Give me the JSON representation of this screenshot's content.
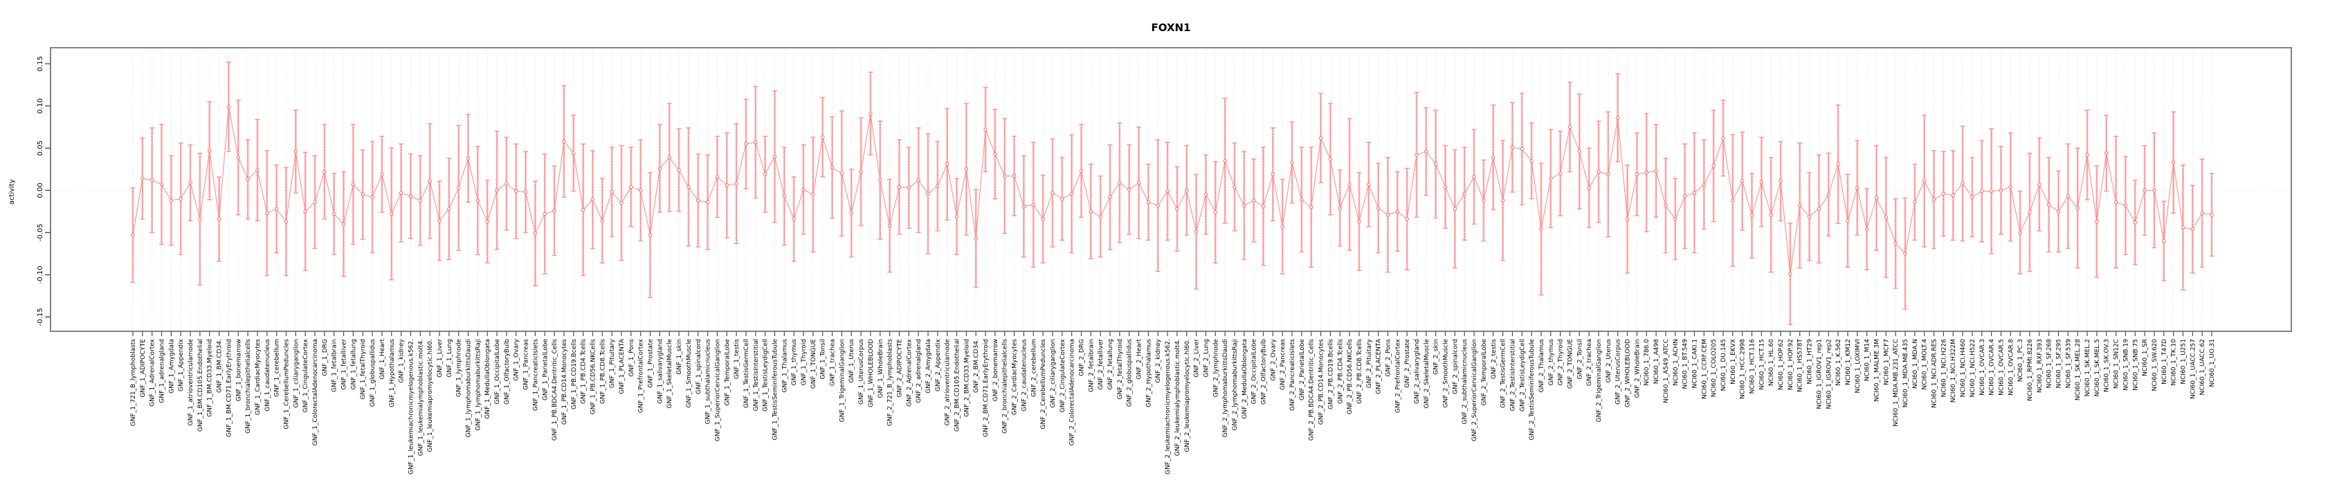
{
  "chart_data": {
    "type": "line",
    "subtype": "point-with-error-bars",
    "title": "FOXN1",
    "ylabel": "activity",
    "xlabel": "",
    "grid": "vertical-dotted-per-category, dotted-zero-line",
    "legend_position": "none",
    "ylim": [
      -0.167,
      0.169
    ],
    "ytick_values": [
      0.15,
      0.1,
      0.05,
      0,
      -0.05,
      -0.1,
      -0.15
    ],
    "ytick_labels": [
      "0.15",
      "0.10",
      "0.05",
      "0.00",
      "-0.05",
      "-0.10",
      "-0.15"
    ],
    "colors": {
      "point": "#ff6e6e",
      "line": "#ff8585",
      "bar_light": "#ffb3b3",
      "bar_dash": "#ff7070",
      "cap": "#ff9a9a",
      "grid": "#dcdcdc",
      "zero_line": "#e2e2e2",
      "box": "#828282",
      "tick": "#4d4d4d",
      "text": "#000000"
    },
    "category_groups": {
      "series_prefixes": [
        "GNF_1_",
        "GNF_2_"
      ],
      "gnf_tissues": [
        "721_B_lymphoblasts",
        "ADIPOCYTE",
        "AdrenalCortex",
        "adrenalgland",
        "Amygdala",
        "Appendix",
        "atrioventricularnode",
        "BM.CD105.Endothelial",
        "BM.CD33.Myeloid",
        "BM.CD34.",
        "BM.CD71.EarlyErythroid",
        "bonemarrow",
        "bronchialepithelialcells",
        "CardiacMyocytes",
        "caudatenucleus",
        "cerebellum",
        "CerebellumPeduncles",
        "ciliaryganglion",
        "CingulateCortex",
        "ColorectalAdenocarcinoma",
        "DRG",
        "fetalbrain",
        "fetalliver",
        "fetallung",
        "fetalThyroid",
        "globuspallidus",
        "Heart",
        "Hypothalamus",
        "kidney",
        "leukemiachronicmyelogenous.k562.",
        "leukemialymphoblastic.molt4.",
        "leukemiapromyelocytic.hl60.",
        "Liver",
        "Lung",
        "lymphnode",
        "lymphomaburkittsDaudi",
        "lymphomaburkittsRaji",
        "MedullaOblongata",
        "OccipitalLobe",
        "OlfactoryBulb",
        "Ovary",
        "Pancreas",
        "PancreaticIslets",
        "ParietalLobe",
        "PB.BDCA4.Dentritic_Cells",
        "PB.CD14.Monocytes",
        "PB.CD19.Bcells",
        "PB.CD4.Tcells",
        "PB.CD56.NKCells",
        "PB.CD8.Tcells",
        "Pituitary",
        "PLACENTA",
        "Pons",
        "PrefrontalCortex",
        "Prostate",
        "salivarygland",
        "SkeletalMuscle",
        "skin",
        "SmoothMuscle",
        "spinalcord",
        "subthalamicnucleus",
        "SuperiorCervicalGanglion",
        "TemporalLobe",
        "testis",
        "TestisGermCell",
        "TestisInterstitial",
        "TestisLeydigCell",
        "TestisSeminiferousTubule",
        "Thalamus",
        "thymus",
        "Thyroid",
        "TONGUE",
        "Tonsil",
        "trachea",
        "TrigeminalGanglion",
        "Uterus",
        "UterusCorpus",
        "WHOLEBLOOD",
        "WholeBrain"
      ],
      "nci60_prefix": "NCI60_1_",
      "nci60_lines": [
        "786.0",
        "A498",
        "A549_ATCC",
        "ACHN",
        "BT.549",
        "CAKI.1",
        "CCRF.CEM",
        "COLO205",
        "DU.145",
        "EKVX",
        "HCC.2998",
        "HCT.116",
        "HCT.15",
        "HL.60",
        "HOP.62",
        "HOP.92",
        "HS578T",
        "HT29",
        "IGROV1_rep1",
        "IGROV1_rep2",
        "K.562",
        "KM12",
        "LOXIMVI",
        "M14",
        "MALME.3M",
        "MCF7",
        "MDA.MB.231_ATCC",
        "MDA.MB.435",
        "MDA.N",
        "MOLT.4",
        "NCI.ADR.RES",
        "NCI.H226",
        "NCI.H322M",
        "NCI.H460",
        "NCI.H522",
        "OVCAR.3",
        "OVCAR.4",
        "OVCAR.5",
        "OVCAR.8",
        "PC.3",
        "RPMI.8226",
        "RXF.393",
        "SF.268",
        "SF.295",
        "SF.539",
        "SK.MEL.28",
        "SK.MEL.2",
        "SK.MEL.5",
        "SK.OV.3",
        "SN12C",
        "SNB.19",
        "SNB.75",
        "SR",
        "SW.620",
        "T47D",
        "TK.10",
        "U251",
        "UACC.257",
        "UACC.62",
        "UO.31"
      ]
    },
    "values": [
      -0.053,
      0.014,
      0.012,
      0.007,
      -0.012,
      -0.01,
      0.009,
      -0.034,
      0.047,
      -0.034,
      0.099,
      0.039,
      0.013,
      0.024,
      -0.027,
      -0.022,
      -0.037,
      0.046,
      -0.025,
      -0.014,
      0.022,
      -0.028,
      -0.04,
      0.007,
      -0.005,
      -0.008,
      0.019,
      -0.028,
      -0.003,
      -0.007,
      -0.012,
      0.011,
      -0.036,
      -0.022,
      0.003,
      0.038,
      -0.012,
      -0.037,
      0.0,
      0.008,
      -0.001,
      -0.002,
      -0.051,
      -0.028,
      -0.024,
      0.058,
      0.044,
      -0.023,
      -0.011,
      -0.036,
      -0.002,
      -0.015,
      0.004,
      0.0,
      -0.053,
      0.026,
      0.039,
      0.024,
      0.004,
      -0.012,
      -0.014,
      0.016,
      0.006,
      0.008,
      0.055,
      0.057,
      0.019,
      0.04,
      -0.007,
      -0.034,
      0.001,
      -0.005,
      0.063,
      0.027,
      0.02,
      -0.027,
      0.022,
      0.091,
      0.012,
      -0.042,
      0.004,
      0.003,
      0.012,
      -0.004,
      0.005,
      0.031,
      -0.031,
      0.025,
      -0.057,
      0.072,
      0.043,
      0.017,
      0.017,
      -0.019,
      -0.017,
      -0.034,
      -0.003,
      -0.01,
      -0.004,
      0.023,
      -0.025,
      -0.031,
      -0.008,
      0.009,
      0.001,
      0.009,
      -0.014,
      -0.018,
      -0.001,
      -0.022,
      0.0,
      -0.049,
      -0.005,
      -0.026,
      0.035,
      0.004,
      -0.018,
      -0.012,
      -0.019,
      0.019,
      -0.043,
      0.033,
      -0.011,
      -0.02,
      0.062,
      0.037,
      -0.021,
      0.007,
      -0.037,
      0.007,
      -0.021,
      -0.029,
      -0.025,
      -0.034,
      0.042,
      0.046,
      0.031,
      0.004,
      -0.022,
      -0.004,
      0.016,
      -0.012,
      0.039,
      -0.012,
      0.051,
      0.049,
      0.035,
      -0.046,
      0.014,
      0.02,
      0.075,
      0.046,
      0.003,
      0.022,
      0.019,
      0.086,
      -0.034,
      0.019,
      0.021,
      0.023,
      -0.018,
      -0.034,
      -0.007,
      -0.003,
      0.007,
      0.029,
      0.062,
      -0.012,
      0.011,
      -0.03,
      0.01,
      -0.029,
      0.011,
      -0.099,
      -0.018,
      -0.031,
      -0.022,
      -0.005,
      0.031,
      -0.036,
      0.003,
      -0.046,
      -0.009,
      -0.032,
      -0.063,
      -0.075,
      -0.014,
      0.011,
      -0.011,
      -0.004,
      -0.006,
      0.008,
      -0.008,
      -0.001,
      -0.001,
      0.0,
      0.004,
      -0.05,
      -0.026,
      0.007,
      -0.017,
      -0.025,
      -0.007,
      -0.021,
      0.042,
      -0.037,
      0.044,
      -0.014,
      -0.018,
      -0.038,
      0.0,
      0.0,
      -0.06,
      0.033,
      -0.044,
      -0.046,
      -0.027,
      -0.029
    ],
    "errors": [
      0.056,
      0.048,
      0.062,
      0.071,
      0.053,
      0.066,
      0.045,
      0.078,
      0.058,
      0.05,
      0.053,
      0.068,
      0.047,
      0.06,
      0.074,
      0.052,
      0.064,
      0.049,
      0.07,
      0.055,
      0.056,
      0.048,
      0.062,
      0.071,
      0.053,
      0.066,
      0.045,
      0.078,
      0.058,
      0.05,
      0.053,
      0.068,
      0.047,
      0.06,
      0.074,
      0.052,
      0.064,
      0.049,
      0.07,
      0.055,
      0.056,
      0.048,
      0.062,
      0.071,
      0.053,
      0.066,
      0.045,
      0.078,
      0.058,
      0.05,
      0.053,
      0.068,
      0.047,
      0.06,
      0.074,
      0.052,
      0.064,
      0.049,
      0.07,
      0.055,
      0.056,
      0.048,
      0.062,
      0.071,
      0.053,
      0.066,
      0.045,
      0.078,
      0.058,
      0.05,
      0.053,
      0.068,
      0.047,
      0.06,
      0.074,
      0.052,
      0.064,
      0.049,
      0.07,
      0.055,
      0.056,
      0.048,
      0.062,
      0.071,
      0.053,
      0.066,
      0.045,
      0.078,
      0.058,
      0.05,
      0.053,
      0.068,
      0.047,
      0.06,
      0.074,
      0.052,
      0.064,
      0.049,
      0.07,
      0.055,
      0.056,
      0.048,
      0.062,
      0.071,
      0.053,
      0.066,
      0.045,
      0.078,
      0.058,
      0.05,
      0.053,
      0.068,
      0.047,
      0.06,
      0.074,
      0.052,
      0.064,
      0.049,
      0.07,
      0.055,
      0.056,
      0.048,
      0.062,
      0.071,
      0.053,
      0.066,
      0.045,
      0.078,
      0.058,
      0.05,
      0.053,
      0.068,
      0.047,
      0.06,
      0.074,
      0.052,
      0.064,
      0.049,
      0.07,
      0.055,
      0.056,
      0.048,
      0.062,
      0.071,
      0.053,
      0.066,
      0.045,
      0.078,
      0.058,
      0.05,
      0.053,
      0.068,
      0.047,
      0.06,
      0.074,
      0.052,
      0.064,
      0.049,
      0.07,
      0.055,
      0.056,
      0.048,
      0.062,
      0.071,
      0.053,
      0.066,
      0.045,
      0.078,
      0.058,
      0.05,
      0.053,
      0.068,
      0.047,
      0.06,
      0.074,
      0.052,
      0.064,
      0.049,
      0.07,
      0.055,
      0.056,
      0.048,
      0.062,
      0.071,
      0.053,
      0.066,
      0.045,
      0.078,
      0.058,
      0.05,
      0.053,
      0.068,
      0.047,
      0.06,
      0.074,
      0.052,
      0.064,
      0.049,
      0.07,
      0.055,
      0.056,
      0.048,
      0.062,
      0.071,
      0.053,
      0.066,
      0.045,
      0.078,
      0.058,
      0.05,
      0.053,
      0.068,
      0.047,
      0.06,
      0.074,
      0.052,
      0.064,
      0.049
    ]
  }
}
